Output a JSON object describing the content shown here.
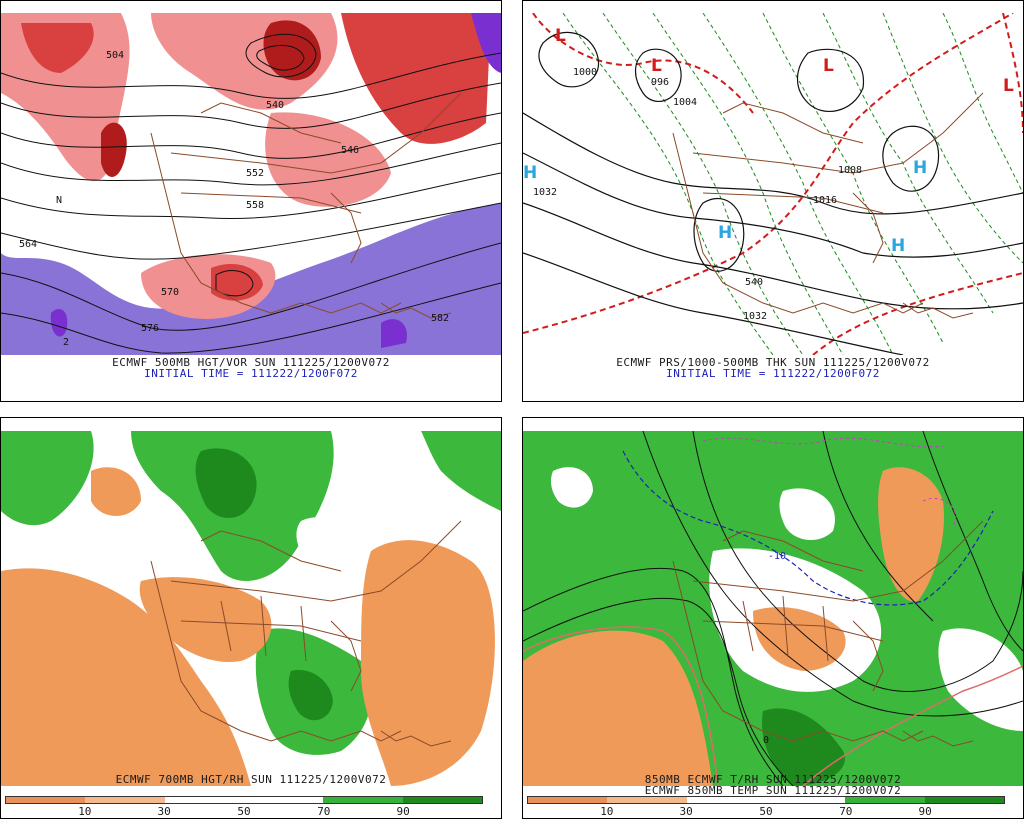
{
  "panels": [
    {
      "caption_line1": "ECMWF 500MB HGT/VOR SUN 111225/1200V072",
      "caption_line2": "INITIAL TIME = 111222/1200F072",
      "contour_labels": [
        "504",
        "540",
        "546",
        "552",
        "558",
        "564",
        "570",
        "576",
        "582",
        "2",
        "N"
      ]
    },
    {
      "caption_line1": "ECMWF PRS/1000-500MB THK SUN 111225/1200V072",
      "caption_line2": "INITIAL TIME = 111222/1200F072",
      "contour_labels": [
        "1000",
        "996",
        "1004",
        "1032",
        "1008",
        "1016",
        "540",
        "1032"
      ],
      "pressure_centers": [
        "L",
        "L",
        "L",
        "L",
        "H",
        "H",
        "H",
        "H"
      ]
    },
    {
      "caption_line1": "ECMWF 700MB HGT/RH SUN 111225/1200V072",
      "colorbar": {
        "colors": [
          "#e8915a",
          "#f4b98c",
          "#ffffff",
          "#ffffff",
          "#34b23a",
          "#1e8a1e"
        ],
        "ticks": [
          "10",
          "30",
          "50",
          "70",
          "90"
        ]
      }
    },
    {
      "caption_line1": "850MB ECMWF T/RH SUN 111225/1200V072",
      "caption_line2": "ECMWF 850MB TEMP SUN 111225/1200V072",
      "contour_labels": [
        "-10",
        "0"
      ],
      "colorbar": {
        "colors": [
          "#e8915a",
          "#f4b98c",
          "#ffffff",
          "#ffffff",
          "#34b23a",
          "#1e8a1e"
        ],
        "ticks": [
          "10",
          "30",
          "50",
          "70",
          "90"
        ]
      }
    }
  ],
  "colors": {
    "vorticity_positive_dark": "#b01c1c",
    "vorticity_positive": "#d94040",
    "vorticity_positive_light": "#f09090",
    "vorticity_negative": "#8a73d6",
    "vorticity_negative_dark": "#7a30d0",
    "rh_dry": "#f09a5a",
    "rh_moist": "#3cb83c",
    "rh_very_moist": "#1e8a1e",
    "geography": "#8b4a2a",
    "thickness_line": "#1e8a1e",
    "thickness_540": "#d21b1b",
    "high_marker": "#29a6e0",
    "low_marker": "#d21b1b"
  }
}
